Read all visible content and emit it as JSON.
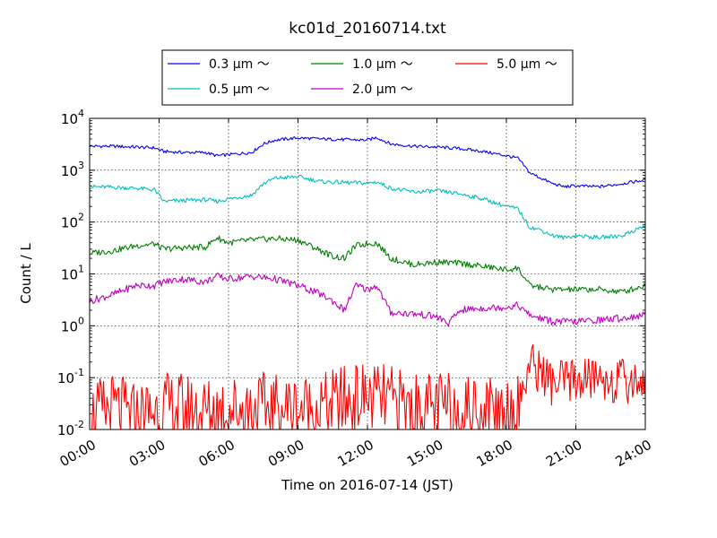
{
  "chart_data": {
    "type": "line",
    "title": "kc01d_20160714.txt",
    "xlabel": "Time on 2016-07-14 (JST)",
    "ylabel": "Count / L",
    "y_scale": "log",
    "xlim_hours": [
      0,
      24
    ],
    "ylim": [
      0.01,
      10000
    ],
    "grid": true,
    "legend_position": "top-center",
    "x_ticks": [
      "00:00",
      "03:00",
      "06:00",
      "09:00",
      "12:00",
      "15:00",
      "18:00",
      "21:00",
      "24:00"
    ],
    "y_ticks": [
      {
        "base": "10",
        "exp": "-2",
        "value": 0.01
      },
      {
        "base": "10",
        "exp": "-1",
        "value": 0.1
      },
      {
        "base": "10",
        "exp": "0",
        "value": 1
      },
      {
        "base": "10",
        "exp": "1",
        "value": 10
      },
      {
        "base": "10",
        "exp": "2",
        "value": 100
      },
      {
        "base": "10",
        "exp": "3",
        "value": 1000
      },
      {
        "base": "10",
        "exp": "4",
        "value": 10000
      }
    ],
    "series": [
      {
        "name": "0.3 μm ～",
        "color": "#0000ff",
        "x": [
          0,
          1,
          2,
          2.8,
          3.2,
          4,
          5,
          5.5,
          6,
          7,
          7.5,
          8,
          9,
          10,
          11,
          12,
          12.4,
          13,
          14,
          15,
          16,
          17,
          18,
          18.5,
          19,
          19.5,
          20,
          20.5,
          21,
          22,
          23,
          24
        ],
        "y": [
          2900,
          2900,
          2800,
          2700,
          2300,
          2200,
          2200,
          1900,
          2000,
          2200,
          3200,
          3800,
          4200,
          4000,
          3900,
          3800,
          4300,
          3200,
          2900,
          2800,
          2600,
          2300,
          1900,
          1700,
          900,
          700,
          550,
          480,
          500,
          480,
          550,
          650
        ]
      },
      {
        "name": "0.5 μm ～",
        "color": "#00bfbf",
        "x": [
          0,
          1,
          2,
          2.8,
          3.2,
          4,
          5,
          5.5,
          6,
          7,
          7.5,
          8,
          9,
          10,
          11,
          12,
          12.4,
          13,
          14,
          15,
          16,
          17,
          18,
          18.5,
          19,
          19.5,
          20,
          20.5,
          21,
          22,
          23,
          24
        ],
        "y": [
          480,
          470,
          450,
          420,
          250,
          260,
          270,
          250,
          280,
          330,
          550,
          700,
          750,
          600,
          580,
          560,
          600,
          450,
          380,
          400,
          350,
          280,
          200,
          180,
          80,
          70,
          55,
          50,
          55,
          50,
          55,
          85
        ]
      },
      {
        "name": "1.0 μm ～",
        "color": "#008000",
        "x": [
          0,
          1,
          2,
          2.8,
          3.2,
          4,
          5,
          5.5,
          6,
          7,
          8,
          9,
          10,
          10.5,
          11,
          11.5,
          12,
          12.4,
          13,
          14,
          15,
          16,
          17,
          18,
          18.5,
          19,
          20,
          21,
          22,
          23,
          24
        ],
        "y": [
          25,
          28,
          35,
          38,
          30,
          32,
          33,
          50,
          40,
          45,
          48,
          45,
          28,
          22,
          20,
          35,
          38,
          40,
          20,
          15,
          17,
          16,
          14,
          12,
          13,
          6,
          5,
          5,
          5,
          4.5,
          6
        ]
      },
      {
        "name": "2.0 μm ～",
        "color": "#bf00bf",
        "x": [
          0,
          1,
          2,
          2.8,
          3.2,
          4,
          5,
          5.5,
          6,
          7,
          8,
          9,
          10,
          10.5,
          11,
          11.5,
          12,
          12.4,
          13,
          14,
          15,
          15.5,
          16,
          17,
          18,
          18.5,
          19,
          20,
          21,
          22,
          23,
          24
        ],
        "y": [
          3,
          4,
          6,
          6,
          7,
          8,
          7,
          9,
          8,
          9,
          8,
          6,
          4,
          3,
          2,
          6,
          5,
          6,
          1.8,
          1.7,
          1.5,
          1.1,
          2,
          2.2,
          2.3,
          2.5,
          1.6,
          1.2,
          1.2,
          1.3,
          1.4,
          1.6
        ]
      },
      {
        "name": "5.0 μm ～",
        "color": "#ff0000",
        "x": [
          0,
          1,
          2,
          3,
          4,
          5,
          6,
          7,
          8,
          9,
          10,
          11,
          12,
          13,
          14,
          15,
          16,
          17,
          18,
          18.5,
          19,
          19.5,
          20,
          21,
          22,
          23,
          24
        ],
        "y": [
          0.02,
          0.03,
          0.02,
          0.03,
          0.03,
          0.025,
          0.03,
          0.03,
          0.03,
          0.03,
          0.03,
          0.04,
          0.05,
          0.04,
          0.03,
          0.03,
          0.03,
          0.03,
          0.03,
          0.03,
          0.2,
          0.15,
          0.08,
          0.1,
          0.11,
          0.09,
          0.1
        ]
      }
    ]
  }
}
